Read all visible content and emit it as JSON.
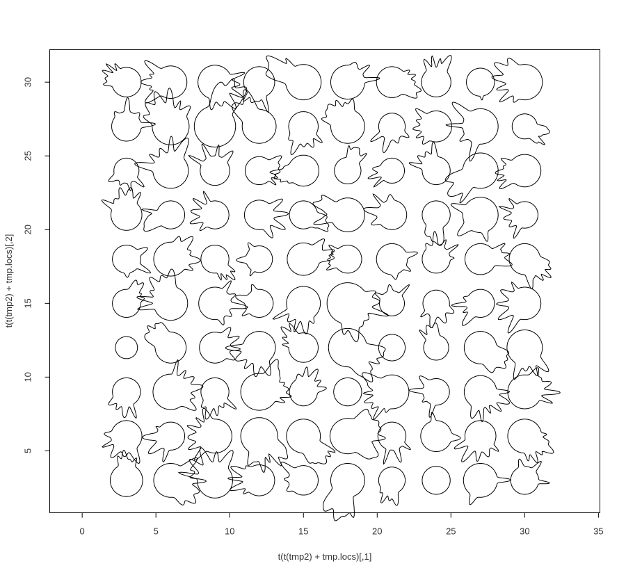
{
  "chart_data": {
    "type": "scatter",
    "marker": "star-glyph",
    "xlabel": "t(t(tmp2) + tmp.locs)[,1]",
    "ylabel": "t(t(tmp2) + tmp.locs)[,2]",
    "xlim": [
      -2.2,
      35.1
    ],
    "ylim": [
      0.8,
      32.2
    ],
    "xticks": [
      0,
      5,
      10,
      15,
      20,
      25,
      30,
      35
    ],
    "yticks": [
      5,
      10,
      15,
      20,
      25,
      30
    ],
    "grid": false,
    "colors": {
      "line": "#000000",
      "frame": "#000000",
      "text": "#333333"
    },
    "x_centers": [
      3,
      6,
      9,
      12,
      15,
      18,
      21,
      24,
      27,
      30
    ],
    "y_centers": [
      3,
      6,
      9,
      12,
      15,
      18,
      21,
      24,
      27,
      30
    ],
    "radii": [
      [
        1.1,
        1.15,
        1.2,
        1.05,
        1.0,
        1.15,
        0.9,
        0.95,
        1.15,
        0.95
      ],
      [
        1.05,
        0.95,
        1.15,
        1.25,
        1.15,
        1.2,
        0.95,
        1.05,
        1.05,
        1.15
      ],
      [
        0.95,
        1.2,
        0.95,
        1.25,
        0.95,
        0.95,
        1.15,
        0.9,
        1.1,
        1.15
      ],
      [
        0.75,
        1.05,
        1.05,
        1.1,
        1.0,
        1.3,
        0.9,
        0.85,
        1.1,
        1.2
      ],
      [
        0.95,
        1.15,
        1.1,
        0.95,
        1.15,
        1.4,
        0.85,
        0.9,
        0.95,
        1.1
      ],
      [
        0.95,
        1.15,
        0.95,
        0.9,
        1.1,
        0.95,
        1.05,
        0.95,
        1.05,
        1.05
      ],
      [
        1.05,
        0.95,
        0.95,
        1.0,
        0.95,
        1.15,
        1.0,
        0.95,
        1.2,
        0.9
      ],
      [
        0.85,
        1.2,
        1.0,
        0.95,
        1.05,
        0.9,
        0.85,
        0.95,
        1.2,
        1.1
      ],
      [
        1.0,
        1.25,
        1.4,
        1.15,
        1.0,
        1.15,
        0.9,
        1.05,
        1.2,
        0.85
      ],
      [
        1.0,
        1.1,
        1.15,
        1.05,
        1.2,
        1.15,
        1.05,
        1.0,
        0.95,
        1.2
      ]
    ],
    "spikes": [
      [
        4,
        6,
        5,
        5,
        3,
        7,
        4,
        0,
        2,
        3
      ],
      [
        5,
        4,
        6,
        7,
        6,
        8,
        3,
        2,
        5,
        6
      ],
      [
        4,
        6,
        5,
        7,
        5,
        0,
        7,
        4,
        6,
        5
      ],
      [
        0,
        5,
        4,
        5,
        4,
        6,
        0,
        3,
        5,
        4
      ],
      [
        4,
        6,
        5,
        3,
        5,
        7,
        3,
        4,
        4,
        5
      ],
      [
        3,
        5,
        4,
        3,
        4,
        6,
        3,
        5,
        5,
        6
      ],
      [
        5,
        4,
        5,
        4,
        5,
        6,
        4,
        5,
        3,
        5
      ],
      [
        4,
        5,
        4,
        5,
        5,
        6,
        3,
        4,
        7,
        5
      ],
      [
        4,
        6,
        5,
        6,
        5,
        6,
        4,
        5,
        4,
        6
      ],
      [
        5,
        5,
        6,
        4,
        6,
        3,
        5,
        4,
        1,
        6
      ]
    ]
  }
}
